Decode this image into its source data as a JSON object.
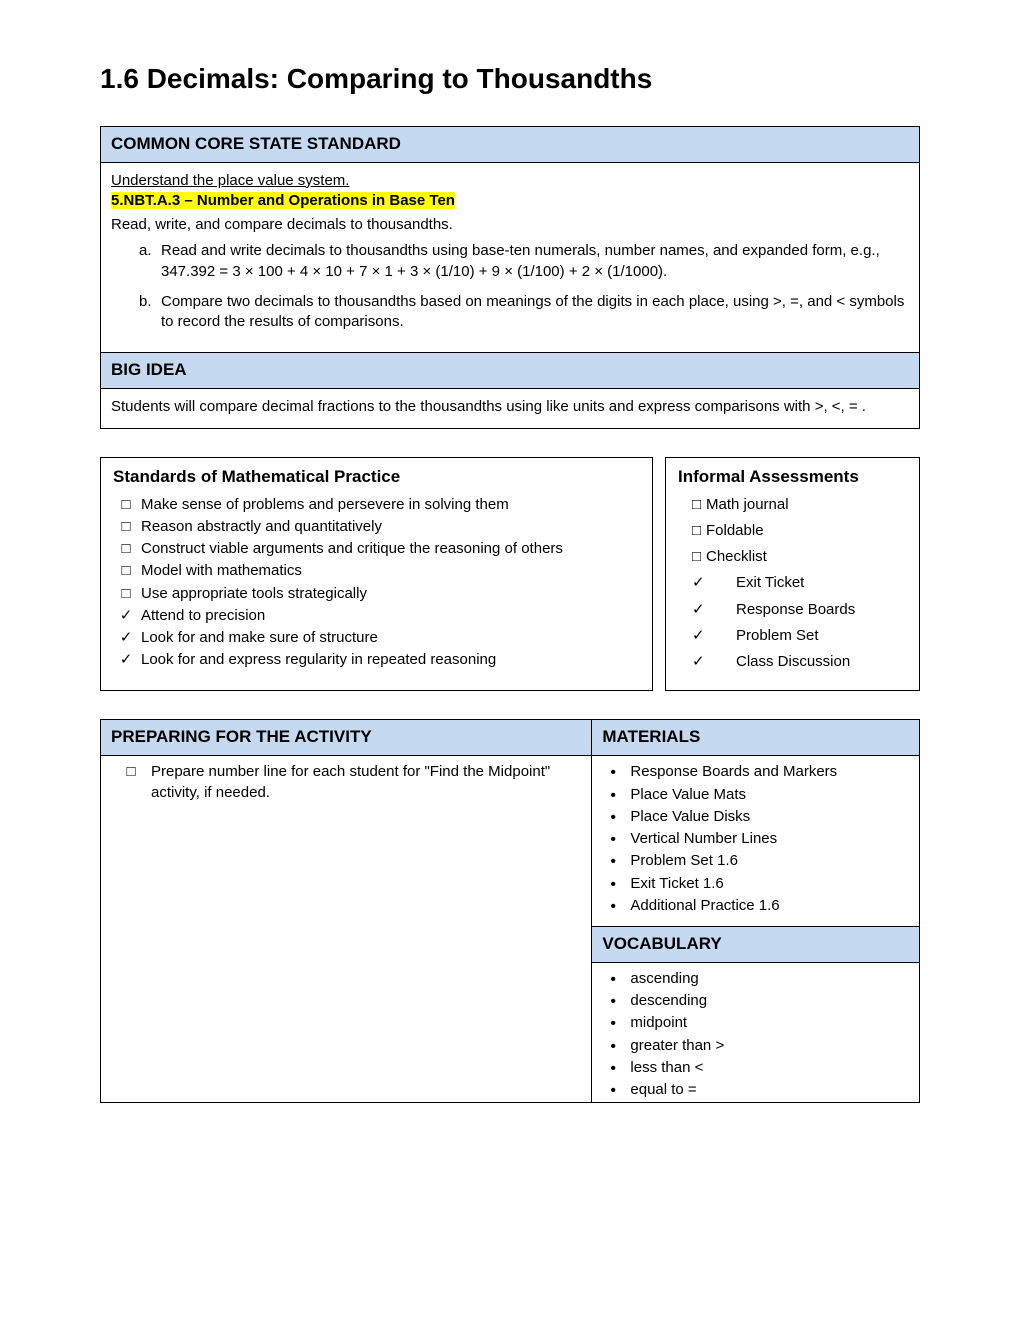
{
  "title": "1.6 Decimals: Comparing to Thousandths",
  "ccss": {
    "header": "COMMON CORE STATE STANDARD",
    "understand": "Understand the place value system.",
    "code": "5.NBT.A.3 – Number and Operations in Base Ten",
    "intro": "Read, write, and compare decimals to thousandths.",
    "a_letter": "a.",
    "a": "Read and write decimals to thousandths using base-ten numerals, number names, and expanded form, e.g., 347.392 = 3 × 100 + 4 × 10 + 7 × 1 + 3 × (1/10) + 9 × (1/100) + 2 × (1/1000).",
    "b_letter": "b.",
    "b": "Compare two decimals to thousandths based on meanings of the digits in each place, using >, =, and < symbols to record the results of comparisons."
  },
  "bigidea": {
    "header": "BIG IDEA",
    "text": "Students will compare decimal fractions to the thousandths using like units and express comparisons with >, <, = ."
  },
  "smp": {
    "header": "Standards of Mathematical Practice",
    "items": [
      {
        "mk": "□",
        "text": "Make sense of problems and persevere in solving them"
      },
      {
        "mk": "□",
        "text": "Reason abstractly and quantitatively"
      },
      {
        "mk": "□",
        "text": "Construct viable arguments and critique the reasoning of others"
      },
      {
        "mk": "□",
        "text": "Model with mathematics"
      },
      {
        "mk": "□",
        "text": "Use appropriate tools strategically"
      },
      {
        "mk": "✓",
        "text": "Attend to precision"
      },
      {
        "mk": "✓",
        "text": "Look for and make sure of structure"
      },
      {
        "mk": "✓",
        "text": "Look for and express regularity in repeated reasoning"
      }
    ]
  },
  "assess": {
    "header": "Informal Assessments",
    "items": [
      {
        "mk": "□",
        "small": true,
        "text": "Math journal"
      },
      {
        "mk": "□",
        "small": true,
        "text": "Foldable"
      },
      {
        "mk": "□",
        "small": true,
        "text": "Checklist"
      },
      {
        "mk": "✓",
        "small": false,
        "text": "Exit Ticket"
      },
      {
        "mk": "✓",
        "small": false,
        "text": "Response Boards"
      },
      {
        "mk": "✓",
        "small": false,
        "text": "Problem Set"
      },
      {
        "mk": "✓",
        "small": false,
        "text": "Class Discussion"
      }
    ]
  },
  "prep": {
    "header": "PREPARING FOR THE ACTIVITY",
    "mk": "□",
    "text": "Prepare number line for each student for \"Find the Midpoint\" activity, if needed."
  },
  "materials": {
    "header": "MATERIALS",
    "items": [
      "Response Boards and Markers",
      "Place Value Mats",
      "Place Value Disks",
      "Vertical Number Lines",
      "Problem Set 1.6",
      "Exit Ticket 1.6",
      "Additional Practice 1.6"
    ]
  },
  "vocab": {
    "header": "VOCABULARY",
    "items": [
      "ascending",
      "descending",
      "midpoint",
      "greater than >",
      "less than <",
      "equal to  ="
    ]
  }
}
